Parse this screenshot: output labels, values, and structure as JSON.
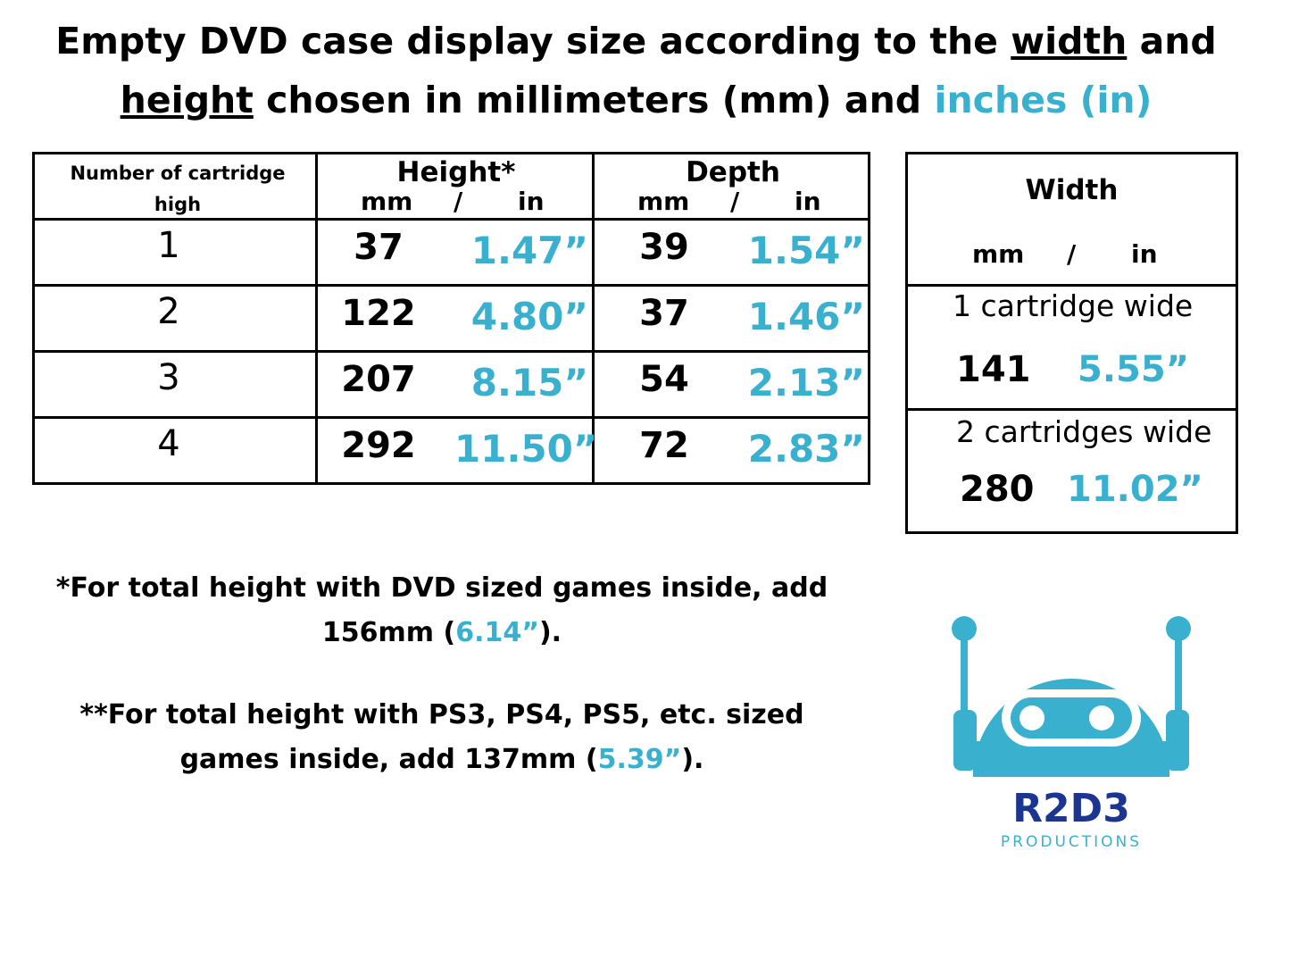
{
  "title": {
    "line1_start": "Empty DVD case display size according to the ",
    "line1_underlined": "width",
    "line1_end": " and",
    "line2_underlined": "height",
    "line2_middle": " chosen in millimeters (mm) and ",
    "line2_blue": "inches (in)"
  },
  "main_table": {
    "header": {
      "count": "Number of cartridge high",
      "height": "Height*",
      "depth": "Depth"
    },
    "units": {
      "mm": "mm",
      "sep": "/",
      "in": "in"
    },
    "rows": [
      [
        "1",
        "37",
        "1.47”",
        "39",
        "1.54”"
      ],
      [
        "2",
        "122",
        "4.80”",
        "37",
        "1.46”"
      ],
      [
        "3",
        "207",
        "8.15”",
        "54",
        "2.13”"
      ],
      [
        "4",
        "292",
        "11.50”",
        "72",
        "2.83”"
      ]
    ]
  },
  "width_table": {
    "header": "Width",
    "units": {
      "mm": "mm",
      "sep": "/",
      "in": "in"
    },
    "rows": [
      {
        "label": "1 cartridge wide",
        "mm": "141",
        "in": "5.55”"
      },
      {
        "label": "2 cartridges wide",
        "mm": "280",
        "in": "11.02”"
      }
    ]
  },
  "notes": [
    {
      "start": "*For total height with DVD sized games inside, add 156mm (",
      "blue": "6.14”",
      "end": ")."
    },
    {
      "start": "**For total height with PS3, PS4, PS5, etc. sized games inside, add 137mm (",
      "blue": "5.39”",
      "end": ")."
    }
  ],
  "logo": {
    "name": "R2D3",
    "subtitle": "PRODUCTIONS"
  }
}
